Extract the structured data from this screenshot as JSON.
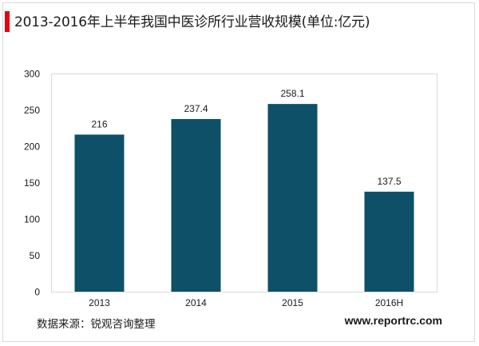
{
  "title": "2013-2016年上半年我国中医诊所行业营收规模(单位:亿元)",
  "source": "数据来源：锐观咨询整理",
  "website": "www.reportrc.com",
  "colors": {
    "bar": "#0e5068",
    "accent": "#e60012"
  },
  "chart_data": {
    "type": "bar",
    "title": "2013-2016年上半年我国中医诊所行业营收规模(单位:亿元)",
    "categories": [
      "2013",
      "2014",
      "2015",
      "2016H"
    ],
    "values": [
      216,
      237.4,
      258.1,
      137.5
    ],
    "value_labels": [
      "216",
      "237.4",
      "258.1",
      "137.5"
    ],
    "ylim": [
      0,
      300
    ],
    "yticks": [
      0,
      50,
      100,
      150,
      200,
      250,
      300
    ],
    "xlabel": "",
    "ylabel": "",
    "grid": false,
    "legend": "none"
  }
}
